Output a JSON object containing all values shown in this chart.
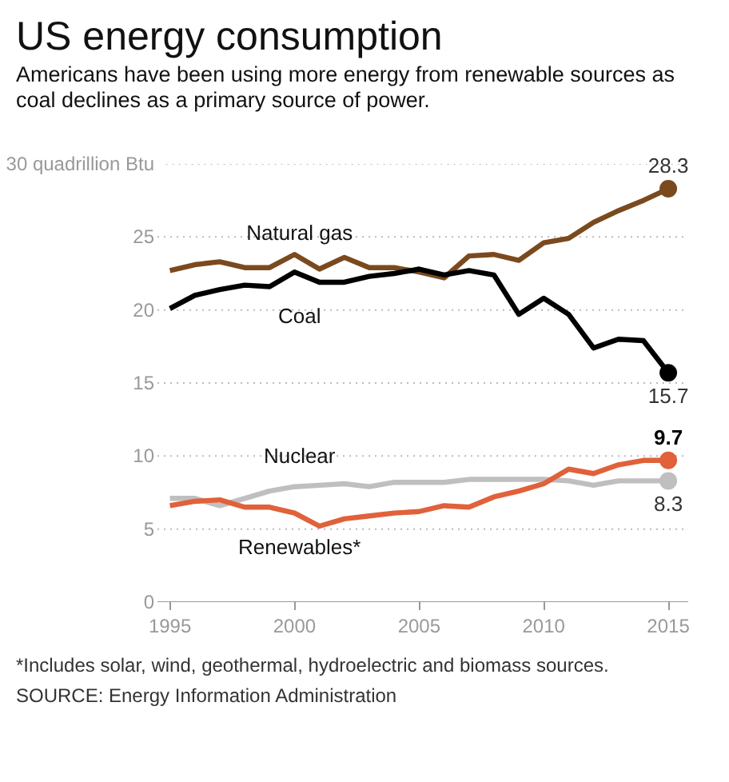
{
  "chart_data": {
    "type": "line",
    "title": "US energy consumption",
    "subtitle": "Americans have been using more energy from renewable sources as coal declines as a primary source of power.",
    "x": [
      1995,
      1996,
      1997,
      1998,
      1999,
      2000,
      2001,
      2002,
      2003,
      2004,
      2005,
      2006,
      2007,
      2008,
      2009,
      2010,
      2011,
      2012,
      2013,
      2014,
      2015
    ],
    "series": [
      {
        "name": "Natural gas",
        "color": "#7a4a1e",
        "values": [
          22.7,
          23.1,
          23.3,
          22.9,
          22.9,
          23.8,
          22.8,
          23.6,
          22.9,
          22.9,
          22.6,
          22.2,
          23.7,
          23.8,
          23.4,
          24.6,
          24.9,
          26.0,
          26.8,
          27.5,
          28.3
        ],
        "value_labels": [
          null,
          null,
          null,
          null,
          null,
          null,
          null,
          null,
          null,
          null,
          null,
          null,
          null,
          null,
          null,
          null,
          null,
          null,
          null,
          null,
          "28.3"
        ]
      },
      {
        "name": "Coal",
        "color": "#000000",
        "values": [
          20.1,
          21.0,
          21.4,
          21.7,
          21.6,
          22.6,
          21.9,
          21.9,
          22.3,
          22.5,
          22.8,
          22.4,
          22.7,
          22.4,
          19.7,
          20.8,
          19.7,
          17.4,
          18.0,
          17.9,
          15.7
        ],
        "value_labels": [
          null,
          null,
          null,
          null,
          null,
          null,
          null,
          null,
          null,
          null,
          null,
          null,
          null,
          null,
          null,
          null,
          null,
          null,
          null,
          null,
          "15.7"
        ]
      },
      {
        "name": "Nuclear",
        "color": "#bfbfbf",
        "values": [
          7.1,
          7.1,
          6.6,
          7.1,
          7.6,
          7.9,
          8.0,
          8.1,
          7.9,
          8.2,
          8.2,
          8.2,
          8.4,
          8.4,
          8.4,
          8.4,
          8.3,
          8.0,
          8.3,
          8.3,
          8.3
        ],
        "value_labels": [
          null,
          null,
          null,
          null,
          null,
          null,
          null,
          null,
          null,
          null,
          null,
          null,
          null,
          null,
          null,
          null,
          null,
          null,
          null,
          null,
          "8.3"
        ]
      },
      {
        "name": "Renewables*",
        "color": "#e0613a",
        "values": [
          6.6,
          6.9,
          7.0,
          6.5,
          6.5,
          6.1,
          5.2,
          5.7,
          5.9,
          6.1,
          6.2,
          6.6,
          6.5,
          7.2,
          7.6,
          8.1,
          9.1,
          8.8,
          9.4,
          9.7,
          9.7
        ],
        "value_labels": [
          null,
          null,
          null,
          null,
          null,
          null,
          null,
          null,
          null,
          null,
          null,
          null,
          null,
          null,
          null,
          null,
          null,
          null,
          null,
          null,
          "9.7"
        ]
      }
    ],
    "xlim": [
      1994.5,
      2015.8
    ],
    "xticks": [
      1995,
      2000,
      2005,
      2010,
      2015
    ],
    "ylim": [
      0,
      30
    ],
    "yticks": [
      0,
      5,
      10,
      15,
      20,
      25,
      {
        "value": 30,
        "label": "30 quadrillion Btu"
      }
    ],
    "grid": "y",
    "line_style": "solid",
    "annotations": [
      "*Includes solar, wind, geothermal, hydroelectric and biomass sources.",
      "SOURCE: Energy Information Administration"
    ]
  }
}
